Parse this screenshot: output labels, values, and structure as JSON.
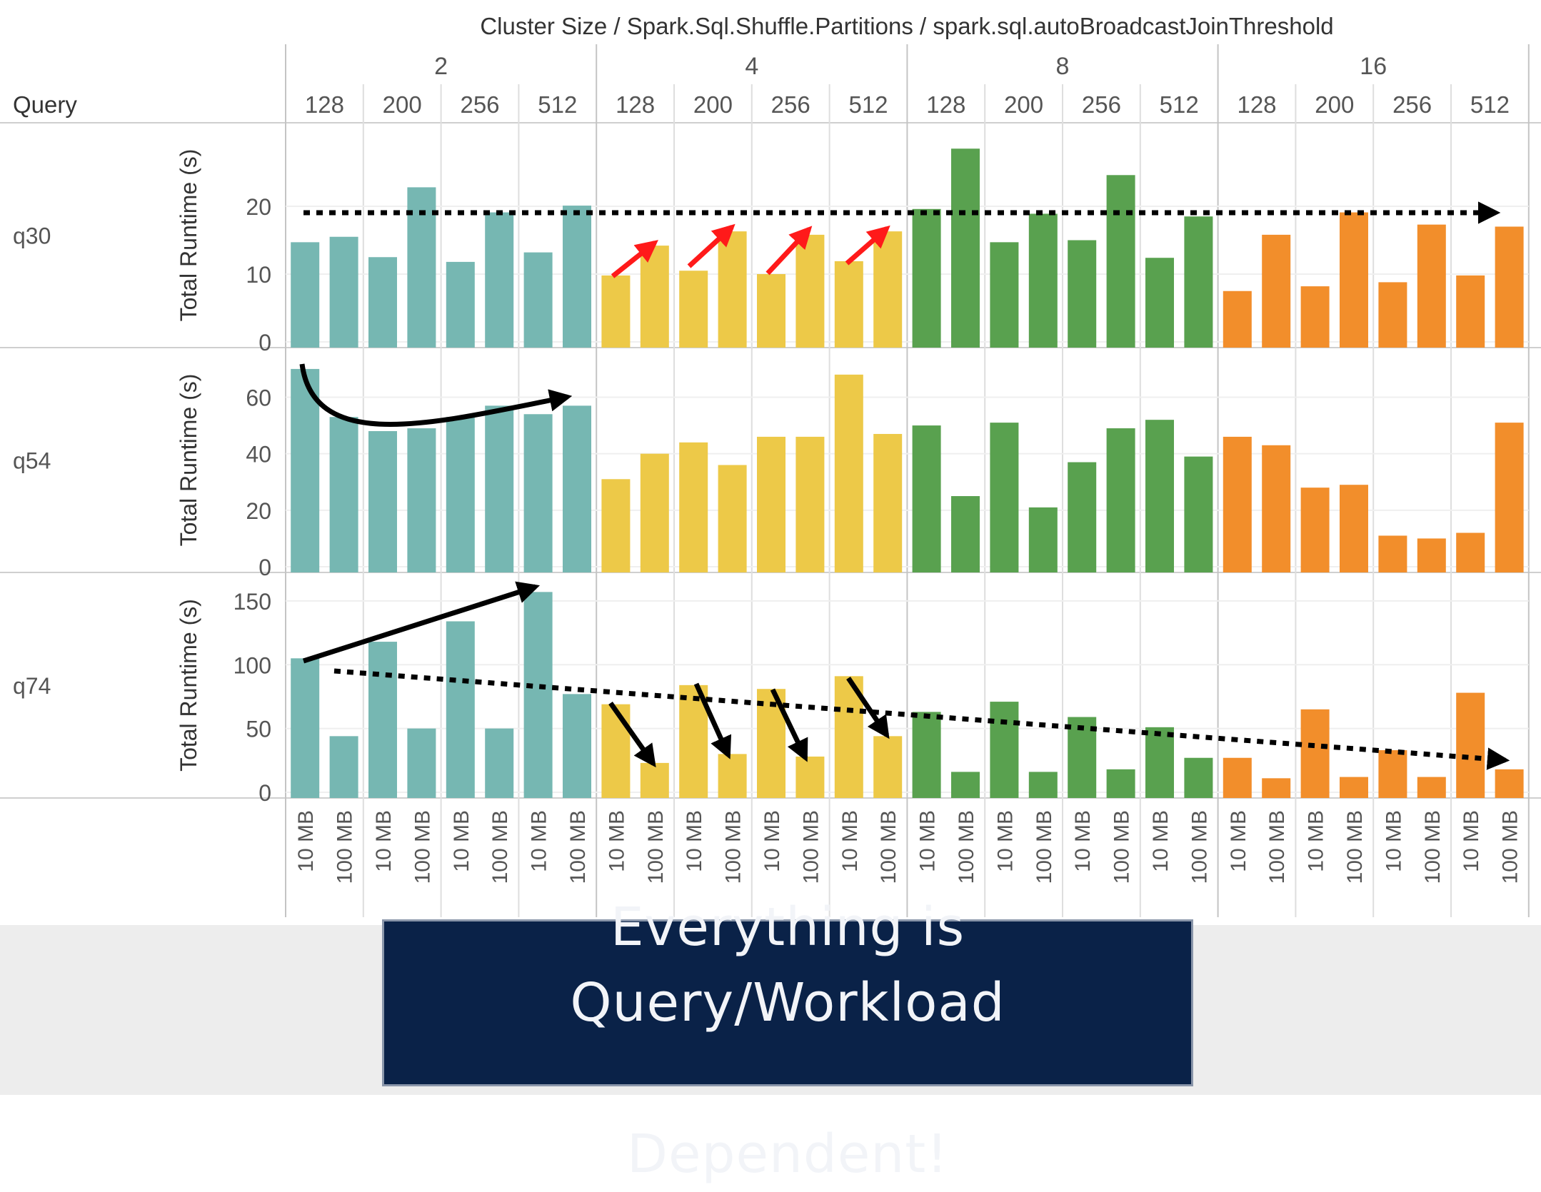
{
  "header": {
    "title": "Cluster Size / Spark.Sql.Shuffle.Partitions / spark.sql.autoBroadcastJoinThreshold",
    "row_label": "Query"
  },
  "banner": {
    "line1": "Everything is Query/Workload",
    "line2": "Dependent!"
  },
  "colors": {
    "2": "#76b7b2",
    "4": "#edc948",
    "8": "#59a14f",
    "16": "#f28e2b",
    "annotation_red": "#ff1a1a",
    "annotation_black": "#000000",
    "banner_bg": "#0a2248"
  },
  "chart_data": {
    "type": "bar",
    "cluster_sizes": [
      "2",
      "4",
      "8",
      "16"
    ],
    "partitions": [
      "128",
      "200",
      "256",
      "512"
    ],
    "thresholds": [
      "10 MB",
      "100 MB"
    ],
    "ylabel": "Total Runtime (s)",
    "series": [
      {
        "name": "q30",
        "ylim": [
          0,
          30
        ],
        "ticks": [
          0,
          10,
          20
        ],
        "values": [
          14.7,
          15.5,
          12.5,
          22.8,
          11.8,
          19.1,
          13.2,
          20.1,
          9.8,
          14.2,
          10.5,
          16.3,
          10.0,
          15.8,
          11.9,
          16.3,
          19.6,
          28.5,
          14.7,
          18.9,
          15.0,
          24.6,
          12.4,
          18.5,
          7.5,
          15.8,
          8.2,
          19.1,
          8.8,
          17.3,
          9.8,
          17.0
        ]
      },
      {
        "name": "q54",
        "ylim": [
          0,
          72
        ],
        "ticks": [
          0,
          20,
          40,
          60
        ],
        "values": [
          70,
          53,
          48,
          49,
          53,
          57,
          54,
          57,
          31,
          40,
          44,
          36,
          46,
          46,
          68,
          47,
          50,
          25,
          51,
          21,
          37,
          49,
          52,
          39,
          46,
          43,
          28,
          29,
          11,
          10,
          12,
          51
        ]
      },
      {
        "name": "q74",
        "ylim": [
          0,
          160
        ],
        "ticks": [
          0,
          50,
          100,
          150
        ],
        "values": [
          105,
          44,
          118,
          50,
          134,
          50,
          157,
          77,
          69,
          23,
          84,
          30,
          81,
          28,
          91,
          44,
          63,
          16,
          71,
          16,
          59,
          18,
          51,
          27,
          27,
          11,
          65,
          12,
          33,
          12,
          78,
          18
        ]
      }
    ]
  }
}
